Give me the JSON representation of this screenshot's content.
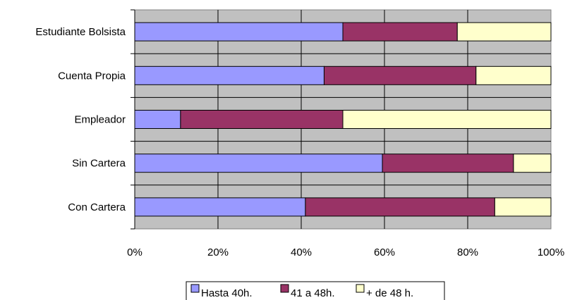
{
  "chart_data": {
    "type": "bar",
    "orientation": "horizontal",
    "stacked": true,
    "percent_stacked": true,
    "categories": [
      "Estudiante Bolsista",
      "Cuenta Propia",
      "Empleador",
      "Sin Cartera",
      "Con Cartera"
    ],
    "series": [
      {
        "name": "Hasta 40h.",
        "color": "#9999ff",
        "values": [
          50,
          45.5,
          11,
          59.5,
          41
        ]
      },
      {
        "name": "41 a 48h.",
        "color": "#993366",
        "values": [
          27.5,
          36.5,
          39,
          31.5,
          45.5
        ]
      },
      {
        "name": "+ de 48 h.",
        "color": "#ffffcc",
        "values": [
          22.5,
          18,
          50,
          9,
          13.5
        ]
      }
    ],
    "xlim": [
      0,
      100
    ],
    "xticks": [
      "0%",
      "20%",
      "40%",
      "60%",
      "80%",
      "100%"
    ],
    "plot_background": "#c0c0c0",
    "grid": true,
    "legend_position": "bottom"
  }
}
